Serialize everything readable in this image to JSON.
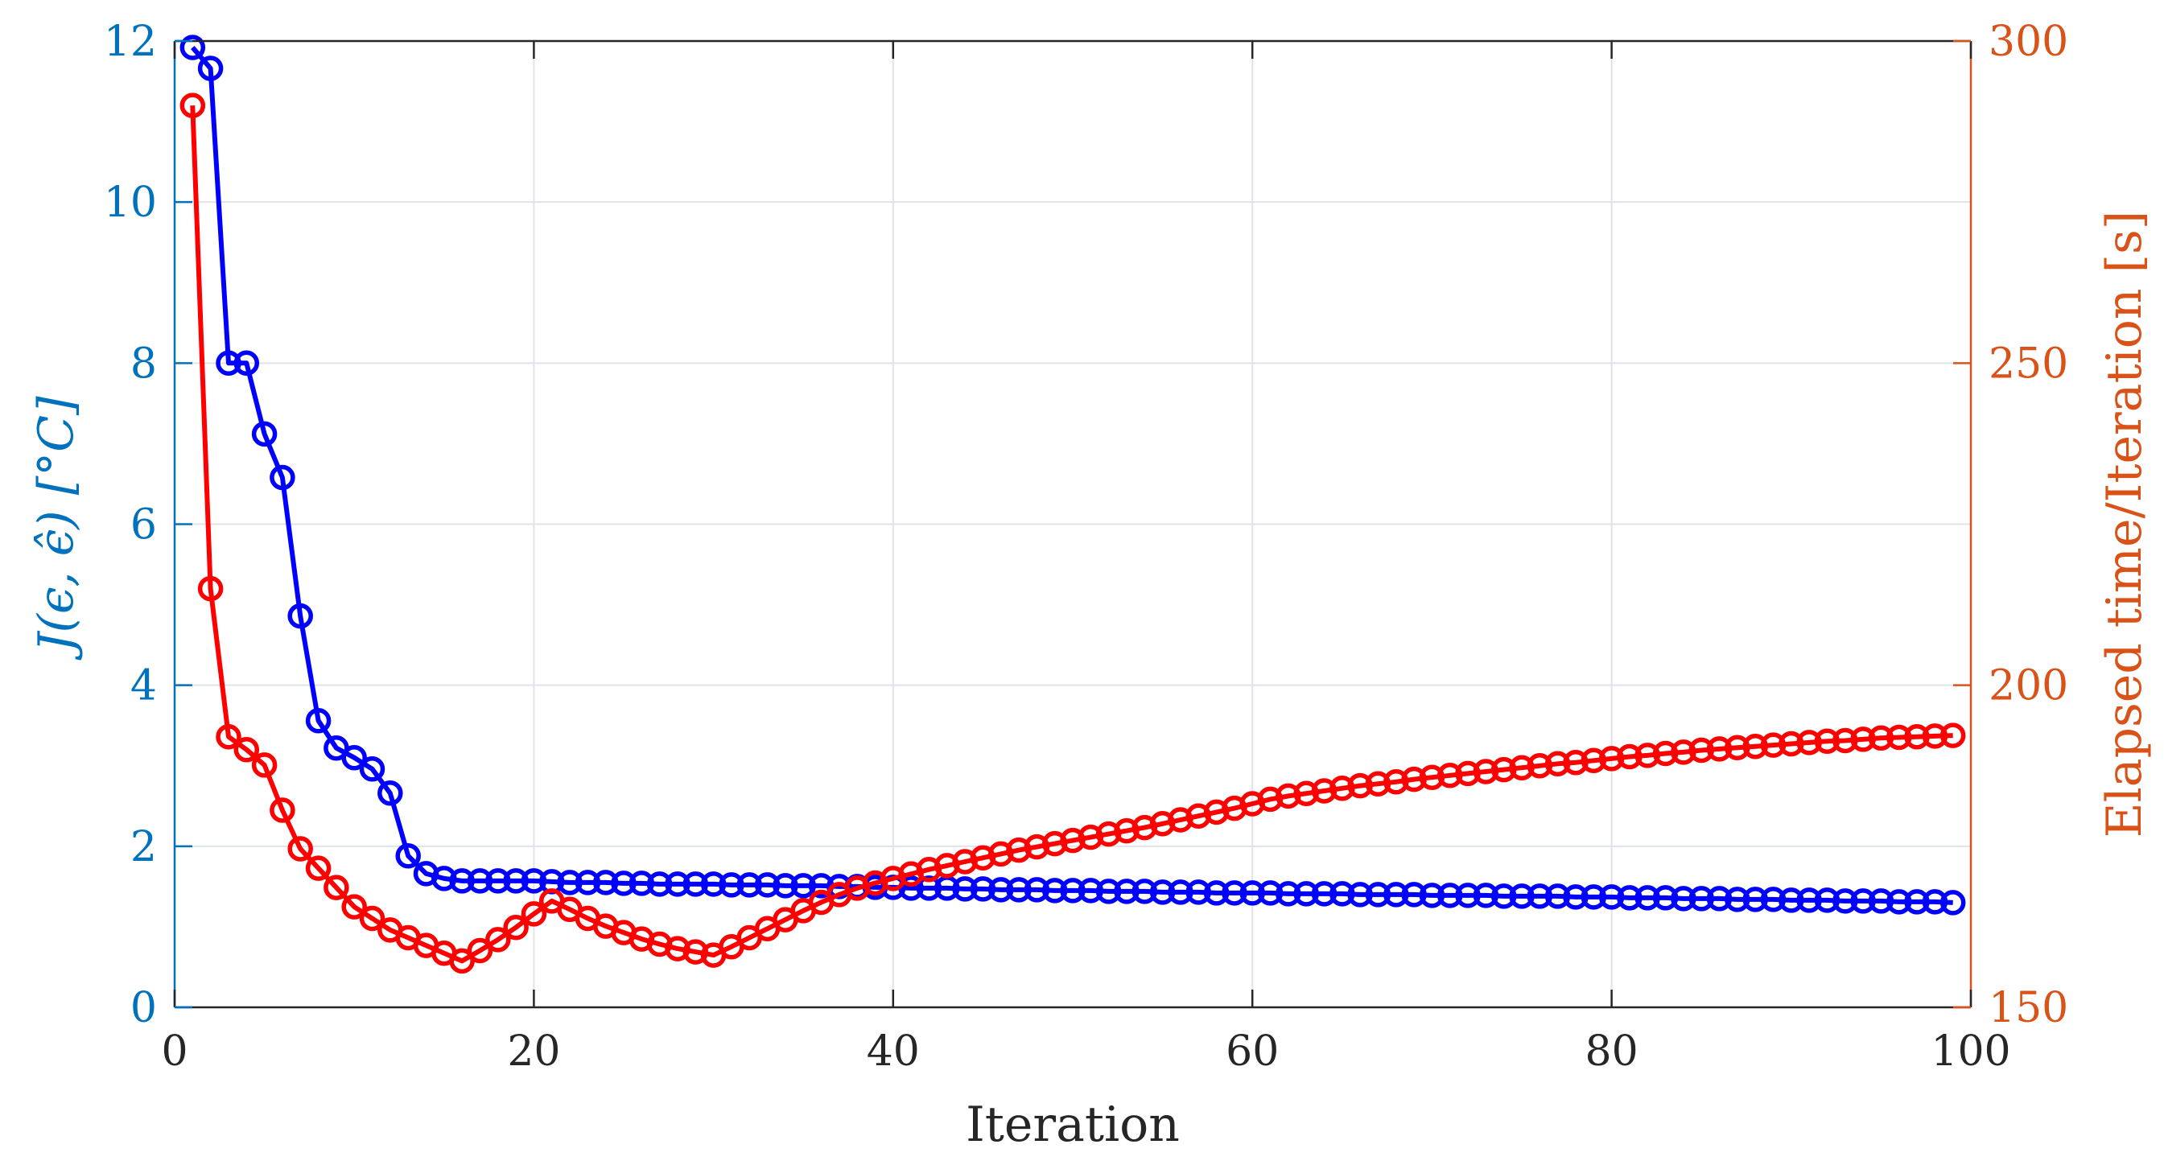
{
  "chart_data": {
    "type": "line",
    "title": "",
    "xlabel": "Iteration",
    "ylabel_left": "J(ϵ, ϵ̂) [°C]",
    "ylabel_right": "Elapsed time/Iteration [s]",
    "xlim": [
      0,
      100
    ],
    "ylim_left": [
      0,
      12
    ],
    "ylim_right": [
      150,
      300
    ],
    "x_ticks": [
      "0",
      "20",
      "40",
      "60",
      "80",
      "100"
    ],
    "y_left_ticks": [
      "0",
      "2",
      "4",
      "6",
      "8",
      "10",
      "12"
    ],
    "y_right_ticks": [
      "150",
      "200",
      "250",
      "300"
    ],
    "grid": true,
    "colors": {
      "left_axis": "#0072bd",
      "right_axis": "#d95319",
      "series_left": "#0000ff",
      "series_right": "#ff0000",
      "grid": "#dfe3ea",
      "box": "#262626"
    },
    "series": [
      {
        "axis": "left",
        "marker": "circle",
        "x": [
          1,
          2,
          3,
          4,
          5,
          6,
          7,
          8,
          9,
          10,
          11,
          12,
          13,
          14,
          15,
          16,
          17,
          18,
          19,
          20,
          21,
          22,
          23,
          24,
          25,
          26,
          27,
          28,
          29,
          30,
          31,
          32,
          33,
          34,
          35,
          36,
          37,
          38,
          39,
          40,
          41,
          42,
          43,
          44,
          45,
          46,
          47,
          48,
          49,
          50,
          51,
          52,
          53,
          54,
          55,
          56,
          57,
          58,
          59,
          60,
          61,
          62,
          63,
          64,
          65,
          66,
          67,
          68,
          69,
          70,
          71,
          72,
          73,
          74,
          75,
          76,
          77,
          78,
          79,
          80,
          81,
          82,
          83,
          84,
          85,
          86,
          87,
          88,
          89,
          90,
          91,
          92,
          93,
          94,
          95,
          96,
          97,
          98,
          99
        ],
        "values": [
          11.92,
          11.66,
          8.0,
          8.0,
          7.12,
          6.58,
          4.86,
          3.56,
          3.22,
          3.1,
          2.96,
          2.66,
          1.88,
          1.66,
          1.6,
          1.57,
          1.57,
          1.57,
          1.57,
          1.57,
          1.56,
          1.55,
          1.55,
          1.55,
          1.54,
          1.54,
          1.53,
          1.53,
          1.53,
          1.53,
          1.52,
          1.52,
          1.52,
          1.51,
          1.51,
          1.51,
          1.5,
          1.5,
          1.49,
          1.49,
          1.48,
          1.48,
          1.48,
          1.47,
          1.47,
          1.46,
          1.46,
          1.46,
          1.45,
          1.45,
          1.45,
          1.44,
          1.44,
          1.44,
          1.43,
          1.43,
          1.43,
          1.42,
          1.42,
          1.42,
          1.42,
          1.41,
          1.41,
          1.41,
          1.41,
          1.4,
          1.4,
          1.4,
          1.4,
          1.39,
          1.39,
          1.39,
          1.39,
          1.38,
          1.38,
          1.38,
          1.38,
          1.37,
          1.37,
          1.37,
          1.36,
          1.36,
          1.36,
          1.35,
          1.35,
          1.35,
          1.34,
          1.34,
          1.34,
          1.33,
          1.33,
          1.33,
          1.32,
          1.32,
          1.32,
          1.31,
          1.31,
          1.31,
          1.3
        ]
      },
      {
        "axis": "right",
        "marker": "circle",
        "x": [
          1,
          2,
          3,
          4,
          5,
          6,
          7,
          8,
          9,
          10,
          11,
          12,
          13,
          14,
          15,
          16,
          17,
          18,
          19,
          20,
          21,
          22,
          23,
          24,
          25,
          26,
          27,
          28,
          29,
          30,
          31,
          32,
          33,
          34,
          35,
          36,
          37,
          38,
          39,
          40,
          41,
          42,
          43,
          44,
          45,
          46,
          47,
          48,
          49,
          50,
          51,
          52,
          53,
          54,
          55,
          56,
          57,
          58,
          59,
          60,
          61,
          62,
          63,
          64,
          65,
          66,
          67,
          68,
          69,
          70,
          71,
          72,
          73,
          74,
          75,
          76,
          77,
          78,
          79,
          80,
          81,
          82,
          83,
          84,
          85,
          86,
          87,
          88,
          89,
          90,
          91,
          92,
          93,
          94,
          95,
          96,
          97,
          98,
          99
        ],
        "values": [
          290,
          215,
          192,
          190,
          187.6,
          180.6,
          174.6,
          171.6,
          168.6,
          165.6,
          163.8,
          162,
          160.8,
          159.6,
          158.4,
          157.2,
          158.8,
          160.5,
          162.4,
          164.5,
          166.5,
          165.2,
          163.8,
          162.6,
          161.6,
          160.6,
          159.8,
          159.1,
          158.6,
          158.1,
          159.4,
          160.8,
          162.2,
          163.6,
          165,
          166.3,
          167.5,
          168.5,
          169.3,
          170,
          170.7,
          171.4,
          172,
          172.6,
          173.2,
          173.8,
          174.4,
          174.9,
          175.4,
          175.9,
          176.4,
          176.9,
          177.4,
          177.9,
          178.5,
          179.1,
          179.7,
          180.3,
          180.9,
          181.6,
          182.3,
          182.8,
          183.2,
          183.6,
          184,
          184.4,
          184.7,
          185,
          185.4,
          185.7,
          186,
          186.3,
          186.6,
          186.9,
          187.2,
          187.5,
          187.8,
          188,
          188.3,
          188.6,
          188.9,
          189.1,
          189.4,
          189.6,
          189.9,
          190.1,
          190.3,
          190.5,
          190.7,
          190.9,
          191.1,
          191.3,
          191.4,
          191.6,
          191.8,
          191.9,
          192,
          192.1,
          192.2
        ]
      }
    ]
  }
}
